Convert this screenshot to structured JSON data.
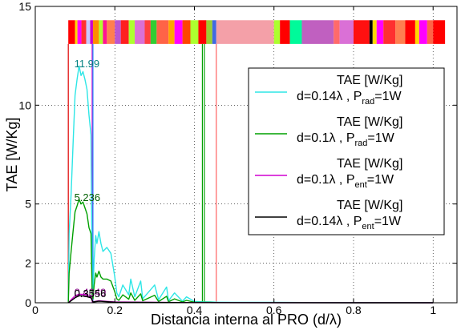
{
  "chart_data": {
    "type": "line",
    "xlabel": "Distancia interna al PRO (d/λ)",
    "ylabel": "TAE [W/Kg]",
    "xlim": [
      0,
      1.06
    ],
    "ylim": [
      0,
      15
    ],
    "x_ticks": [
      0,
      0.2,
      0.4,
      0.6,
      0.8,
      1
    ],
    "x_tick_labels": [
      "0",
      "0.2",
      "0.4",
      "0.6",
      "0.8",
      "1"
    ],
    "y_ticks": [
      0,
      2,
      5,
      10,
      15
    ],
    "y_tick_labels": [
      "0",
      "2",
      "5",
      "10",
      "15"
    ],
    "grid": true,
    "legend_position": "right",
    "series": [
      {
        "name": "TAE [W/Kg] d=0.14λ , P_rad=1W",
        "legend_line1": "TAE [W/Kg]",
        "legend_line2_main": "d=0.14λ , P",
        "legend_line2_sub": "rad",
        "legend_line2_tail": "=1W",
        "color": "#2EE6E6",
        "x": [
          0.083,
          0.085,
          0.09,
          0.095,
          0.1,
          0.105,
          0.11,
          0.115,
          0.12,
          0.125,
          0.13,
          0.135,
          0.14,
          0.143,
          0.145,
          0.148,
          0.152,
          0.155,
          0.16,
          0.165,
          0.17,
          0.18,
          0.19,
          0.2,
          0.205,
          0.21,
          0.22,
          0.235,
          0.24,
          0.25,
          0.265,
          0.27,
          0.3,
          0.31,
          0.33,
          0.335,
          0.35,
          0.37,
          0.38,
          0.4,
          0.42,
          0.44,
          0.46,
          0.5,
          0.6,
          0.7,
          0.8,
          0.9,
          1.0
        ],
        "y": [
          0,
          3.5,
          5.5,
          8.0,
          10.5,
          11.3,
          11.99,
          11.5,
          11.7,
          11.3,
          10.8,
          9.5,
          8.5,
          1.0,
          0.5,
          2.2,
          3.4,
          3.0,
          3.6,
          3.0,
          2.6,
          2.8,
          2.5,
          1.3,
          0.5,
          0.3,
          0.9,
          0.4,
          1.2,
          0.3,
          1.1,
          0.2,
          0.9,
          0.15,
          0.8,
          0.1,
          0.5,
          0.08,
          0.3,
          0.07,
          0.05,
          0.04,
          0.03,
          0.02,
          0.02,
          0.01,
          0.01,
          0.01,
          0.01
        ]
      },
      {
        "name": "TAE [W/Kg] d=0.1λ , P_rad=1W",
        "legend_line1": "TAE [W/Kg]",
        "legend_line2_main": "d=0.1λ , P",
        "legend_line2_sub": "rad",
        "legend_line2_tail": "=1W",
        "color": "#00A000",
        "x": [
          0.083,
          0.085,
          0.09,
          0.095,
          0.1,
          0.105,
          0.11,
          0.115,
          0.12,
          0.125,
          0.13,
          0.135,
          0.14,
          0.143,
          0.145,
          0.148,
          0.152,
          0.155,
          0.16,
          0.165,
          0.17,
          0.18,
          0.19,
          0.2,
          0.205,
          0.21,
          0.22,
          0.235,
          0.24,
          0.25,
          0.265,
          0.27,
          0.3,
          0.31,
          0.33,
          0.335,
          0.35,
          0.37,
          0.38,
          0.4,
          0.42,
          0.44,
          0.46,
          0.5,
          0.6,
          0.7,
          0.8,
          0.9,
          1.0
        ],
        "y": [
          0,
          1.5,
          2.6,
          3.6,
          4.6,
          4.9,
          5.236,
          5.0,
          5.1,
          4.8,
          4.5,
          3.8,
          3.5,
          0.4,
          0.2,
          0.9,
          1.5,
          1.3,
          1.6,
          1.3,
          1.2,
          1.2,
          1.1,
          0.55,
          0.2,
          0.12,
          0.4,
          0.18,
          0.5,
          0.12,
          0.45,
          0.1,
          0.38,
          0.06,
          0.33,
          0.05,
          0.2,
          0.04,
          0.12,
          0.03,
          0.02,
          0.02,
          0.01,
          0.01,
          0.01,
          0.005,
          0.005,
          0.005,
          0.005
        ]
      },
      {
        "name": "TAE [W/Kg] d=0.1λ , P_ent=1W",
        "legend_line1": "TAE [W/Kg]",
        "legend_line2_main": "d=0.1λ , P",
        "legend_line2_sub": "ent",
        "legend_line2_tail": "=1W",
        "color": "#D000D0",
        "x": [
          0.083,
          0.09,
          0.1,
          0.11,
          0.12,
          0.13,
          0.14,
          0.145,
          0.16,
          0.2,
          0.3,
          0.4,
          0.6,
          0.8,
          1.0
        ],
        "y": [
          0,
          0.15,
          0.35,
          0.4349,
          0.42,
          0.38,
          0.3,
          0.05,
          0.1,
          0.04,
          0.02,
          0.01,
          0.005,
          0.003,
          0.002
        ]
      },
      {
        "name": "TAE [W/Kg] d=0.14λ , P_ent=1W",
        "legend_line1": "TAE [W/Kg]",
        "legend_line2_main": "d=0.14λ , P",
        "legend_line2_sub": "ent",
        "legend_line2_tail": "=1W",
        "color": "#000000",
        "x": [
          0.083,
          0.09,
          0.1,
          0.11,
          0.12,
          0.13,
          0.14,
          0.145,
          0.16,
          0.2,
          0.3,
          0.4,
          0.6,
          0.8,
          1.0
        ],
        "y": [
          0,
          0.1,
          0.25,
          0.3556,
          0.34,
          0.31,
          0.25,
          0.04,
          0.08,
          0.03,
          0.015,
          0.008,
          0.004,
          0.002,
          0.002
        ]
      }
    ],
    "peak_labels": [
      {
        "text": "11.99",
        "x": 0.11,
        "y": 11.99,
        "color": "#008080"
      },
      {
        "text": "5.236",
        "x": 0.11,
        "y": 5.236,
        "color": "#006000"
      },
      {
        "text": "0.4349",
        "x": 0.11,
        "y": 0.4349,
        "color": "#800080"
      },
      {
        "text": "0.3556",
        "x": 0.11,
        "y": 0.3556,
        "color": "#000000"
      }
    ],
    "vertical_markers": [
      {
        "x": 0.083,
        "color": "#E00000"
      },
      {
        "x": 0.143,
        "color": "#D000D0"
      },
      {
        "x": 0.145,
        "color": "#1E90FF"
      },
      {
        "x": 0.42,
        "color": "#00A000"
      },
      {
        "x": 0.425,
        "color": "#00A000"
      },
      {
        "x": 0.455,
        "color": "#FF6060"
      }
    ],
    "color_band": {
      "y_range": [
        13.1,
        14.3
      ],
      "segments": [
        {
          "x0": 0.083,
          "x1": 0.1,
          "color": "#FF0000"
        },
        {
          "x0": 0.1,
          "x1": 0.106,
          "color": "#FFD700"
        },
        {
          "x0": 0.106,
          "x1": 0.116,
          "color": "#FF00FF"
        },
        {
          "x0": 0.116,
          "x1": 0.128,
          "color": "#FF3030"
        },
        {
          "x0": 0.128,
          "x1": 0.138,
          "color": "#C8C8FF"
        },
        {
          "x0": 0.138,
          "x1": 0.145,
          "color": "#CC00CC"
        },
        {
          "x0": 0.145,
          "x1": 0.16,
          "color": "#FF8C00"
        },
        {
          "x0": 0.16,
          "x1": 0.17,
          "color": "#ADFF2F"
        },
        {
          "x0": 0.17,
          "x1": 0.18,
          "color": "#FF1493"
        },
        {
          "x0": 0.18,
          "x1": 0.2,
          "color": "#FF7F50"
        },
        {
          "x0": 0.2,
          "x1": 0.215,
          "color": "#BA55D3"
        },
        {
          "x0": 0.215,
          "x1": 0.235,
          "color": "#FF2020"
        },
        {
          "x0": 0.235,
          "x1": 0.25,
          "color": "#ADFF2F"
        },
        {
          "x0": 0.25,
          "x1": 0.275,
          "color": "#DA70D6"
        },
        {
          "x0": 0.275,
          "x1": 0.29,
          "color": "#FF4040"
        },
        {
          "x0": 0.29,
          "x1": 0.305,
          "color": "#32CD32"
        },
        {
          "x0": 0.305,
          "x1": 0.335,
          "color": "#FF6347"
        },
        {
          "x0": 0.335,
          "x1": 0.35,
          "color": "#FFA500"
        },
        {
          "x0": 0.35,
          "x1": 0.37,
          "color": "#FF00FF"
        },
        {
          "x0": 0.37,
          "x1": 0.39,
          "color": "#FF4500"
        },
        {
          "x0": 0.39,
          "x1": 0.41,
          "color": "#ADFF2F"
        },
        {
          "x0": 0.41,
          "x1": 0.43,
          "color": "#FF0000"
        },
        {
          "x0": 0.43,
          "x1": 0.445,
          "color": "#9ACD32"
        },
        {
          "x0": 0.445,
          "x1": 0.455,
          "color": "#4169E1"
        },
        {
          "x0": 0.455,
          "x1": 0.6,
          "color": "#F4A0A8"
        },
        {
          "x0": 0.6,
          "x1": 0.615,
          "color": "#ADFF2F"
        },
        {
          "x0": 0.615,
          "x1": 0.64,
          "color": "#FF0000"
        },
        {
          "x0": 0.64,
          "x1": 0.67,
          "color": "#00FA9A"
        },
        {
          "x0": 0.67,
          "x1": 0.75,
          "color": "#C060C0"
        },
        {
          "x0": 0.75,
          "x1": 0.765,
          "color": "#FF6A6A"
        },
        {
          "x0": 0.765,
          "x1": 0.8,
          "color": "#DA70D6"
        },
        {
          "x0": 0.8,
          "x1": 0.84,
          "color": "#FF1010"
        },
        {
          "x0": 0.84,
          "x1": 0.848,
          "color": "#000000"
        },
        {
          "x0": 0.848,
          "x1": 0.858,
          "color": "#FFD700"
        },
        {
          "x0": 0.858,
          "x1": 0.875,
          "color": "#FF00FF"
        },
        {
          "x0": 0.875,
          "x1": 0.905,
          "color": "#FF3030"
        },
        {
          "x0": 0.905,
          "x1": 0.93,
          "color": "#FF7F50"
        },
        {
          "x0": 0.93,
          "x1": 0.955,
          "color": "#FF0000"
        },
        {
          "x0": 0.955,
          "x1": 0.965,
          "color": "#FFD700"
        },
        {
          "x0": 0.965,
          "x1": 0.985,
          "color": "#FF00FF"
        },
        {
          "x0": 0.985,
          "x1": 1.0,
          "color": "#FF6347"
        },
        {
          "x0": 1.0,
          "x1": 1.03,
          "color": "#FF0000"
        }
      ]
    }
  }
}
